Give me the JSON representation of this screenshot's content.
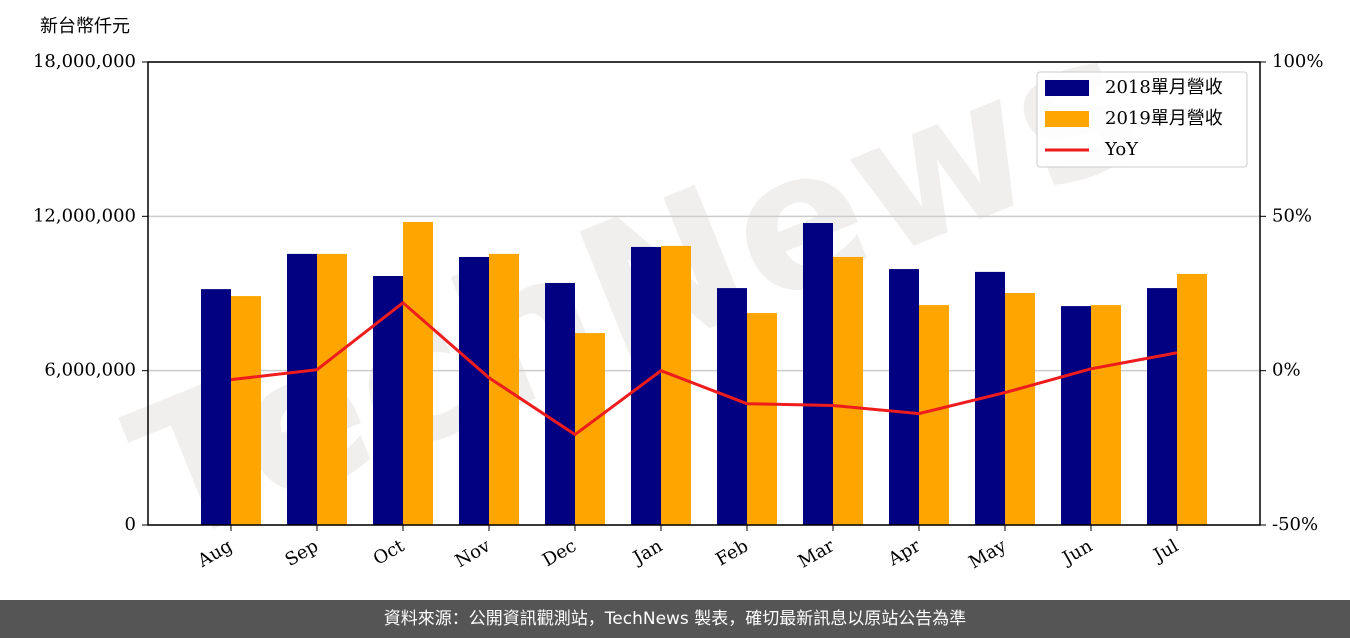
{
  "chart_data": {
    "type": "bar",
    "ylabel": "新台幣仟元",
    "watermark": "TechNews",
    "categories": [
      "Aug",
      "Sep",
      "Oct",
      "Nov",
      "Dec",
      "Jan",
      "Feb",
      "Mar",
      "Apr",
      "May",
      "Jun",
      "Jul"
    ],
    "series": [
      {
        "name": "2018單月營收",
        "color": "#000080",
        "values": [
          9170000,
          10540000,
          9680000,
          10420000,
          9410000,
          10810000,
          9210000,
          11740000,
          9950000,
          9840000,
          8510000,
          9210000
        ]
      },
      {
        "name": "2019單月營收",
        "color": "#ffa500",
        "values": [
          8900000,
          10540000,
          11780000,
          10540000,
          7460000,
          10850000,
          8240000,
          10420000,
          8550000,
          9020000,
          8550000,
          9760000
        ]
      },
      {
        "name": "YoY",
        "type": "line",
        "axis": "y2",
        "color": "#ee1c1c",
        "values": [
          -2.9,
          0.3,
          22,
          -2.3,
          -20.7,
          0,
          -10.7,
          -11.3,
          -13.9,
          -7.1,
          0.6,
          5.8
        ]
      }
    ],
    "ylim": [
      0,
      18000000
    ],
    "yticks": [
      {
        "value": 0,
        "label": "0"
      },
      {
        "value": 6000000,
        "label": "6,000,000"
      },
      {
        "value": 12000000,
        "label": "12,000,000"
      },
      {
        "value": 18000000,
        "label": "18,000,000"
      }
    ],
    "y2lim": [
      -50,
      100
    ],
    "y2ticks": [
      {
        "value": -50,
        "label": "-50%"
      },
      {
        "value": 0,
        "label": "0%"
      },
      {
        "value": 50,
        "label": "50%"
      },
      {
        "value": 100,
        "label": "100%"
      }
    ],
    "grid": true,
    "legend": "upper right"
  },
  "footer": "資料來源：公開資訊觀測站，TechNews 製表，確切最新訊息以原站公告為準"
}
